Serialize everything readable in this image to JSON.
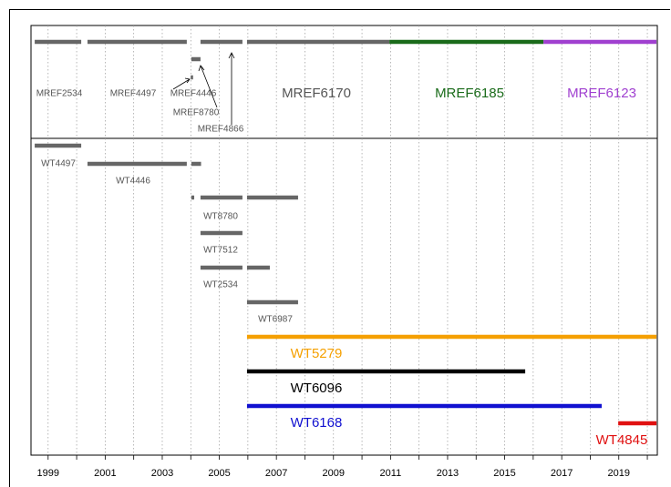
{
  "chart_data": {
    "type": "timeline",
    "xlim": [
      1998.4,
      2020.35
    ],
    "xticks": [
      1999,
      2001,
      2003,
      2005,
      2007,
      2009,
      2011,
      2013,
      2015,
      2017,
      2019
    ],
    "xminorticks": [
      2000,
      2002,
      2004,
      2006,
      2008,
      2010,
      2012,
      2014,
      2016,
      2018,
      2020
    ],
    "grid": true,
    "series": [
      {
        "name": "MREF2534",
        "color": "#666666",
        "segments": [
          [
            1998.53,
            2000.16
          ]
        ]
      },
      {
        "name": "MREF4497",
        "color": "#666666",
        "segments": [
          [
            2000.38,
            2003.86
          ]
        ]
      },
      {
        "name": "MREF4446",
        "color": "#666666",
        "segments": [
          [
            2004.0,
            2004.08
          ]
        ]
      },
      {
        "name": "MREF8780",
        "color": "#666666",
        "segments": [
          [
            2004.02,
            2004.34
          ]
        ]
      },
      {
        "name": "MREF4866",
        "color": "#666666",
        "segments": [
          [
            2004.34,
            2005.81
          ]
        ]
      },
      {
        "name": "MREF6170",
        "color": "#666666",
        "segments": [
          [
            2005.97,
            2010.96
          ]
        ]
      },
      {
        "name": "MREF6185",
        "color": "#1a6b1a",
        "segments": [
          [
            2010.96,
            2016.36
          ]
        ]
      },
      {
        "name": "MREF6123",
        "color": "#a040d0",
        "segments": [
          [
            2016.36,
            2020.32
          ]
        ]
      },
      {
        "name": "WT4497",
        "color": "#666666",
        "segments": [
          [
            1998.53,
            2000.16
          ]
        ]
      },
      {
        "name": "WT4446",
        "color": "#666666",
        "segments": [
          [
            2000.38,
            2003.86
          ],
          [
            2004.02,
            2004.36
          ]
        ]
      },
      {
        "name": "WT8780",
        "color": "#666666",
        "segments": [
          [
            2004.02,
            2004.12
          ],
          [
            2004.34,
            2005.81
          ],
          [
            2005.97,
            2007.76
          ]
        ]
      },
      {
        "name": "WT7512",
        "color": "#666666",
        "segments": [
          [
            2004.34,
            2005.81
          ]
        ]
      },
      {
        "name": "WT2534",
        "color": "#666666",
        "segments": [
          [
            2004.34,
            2005.81
          ],
          [
            2005.97,
            2006.77
          ]
        ]
      },
      {
        "name": "WT6987",
        "color": "#666666",
        "segments": [
          [
            2005.97,
            2007.76
          ]
        ]
      },
      {
        "name": "WT5279",
        "color": "#f5a000",
        "segments": [
          [
            2005.97,
            2020.32
          ]
        ]
      },
      {
        "name": "WT6096",
        "color": "#000000",
        "segments": [
          [
            2005.97,
            2015.72
          ]
        ]
      },
      {
        "name": "WT6168",
        "color": "#1010d0",
        "segments": [
          [
            2005.97,
            2018.4
          ]
        ]
      },
      {
        "name": "WT4845",
        "color": "#e01010",
        "segments": [
          [
            2018.98,
            2020.32
          ]
        ]
      }
    ]
  }
}
